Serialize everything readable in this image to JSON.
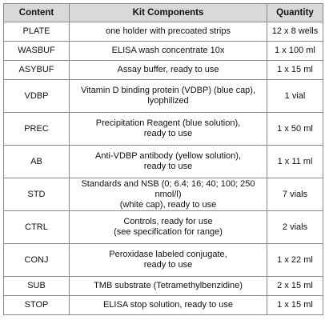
{
  "table": {
    "header": [
      "Content",
      "Kit Components",
      "Quantity"
    ],
    "rows": [
      [
        "PLATE",
        [
          "one holder with precoated strips"
        ],
        "12 x 8 wells"
      ],
      [
        "WASBUF",
        [
          "ELISA wash concentrate 10x"
        ],
        "1 x 100 ml"
      ],
      [
        "ASYBUF",
        [
          "Assay buffer, ready to use"
        ],
        "1 x 15 ml"
      ],
      [
        "VDBP",
        [
          "Vitamin D binding protein (VDBP) (blue cap),",
          "lyophilized"
        ],
        "1 vial"
      ],
      [
        "PREC",
        [
          "Precipitation Reagent (blue solution),",
          "ready to use"
        ],
        "1 x 50 ml"
      ],
      [
        "AB",
        [
          "Anti-VDBP antibody (yellow solution),",
          "ready to use"
        ],
        "1 x 11 ml"
      ],
      [
        "STD",
        [
          "Standards and NSB (0; 6.4; 16; 40; 100; 250 nmol/l)",
          "(white cap), ready to use"
        ],
        "7 vials"
      ],
      [
        "CTRL",
        [
          "Controls, ready for use",
          "(see specification for range)"
        ],
        "2 vials"
      ],
      [
        "CONJ",
        [
          "Peroxidase labeled conjugate,",
          "ready to use"
        ],
        "1 x 22 ml"
      ],
      [
        "SUB",
        [
          "TMB substrate (Tetramethylbenzidine)"
        ],
        "2 x 15 ml"
      ],
      [
        "STOP",
        [
          "ELISA stop solution, ready to use"
        ],
        "1 x 15 ml"
      ]
    ]
  }
}
